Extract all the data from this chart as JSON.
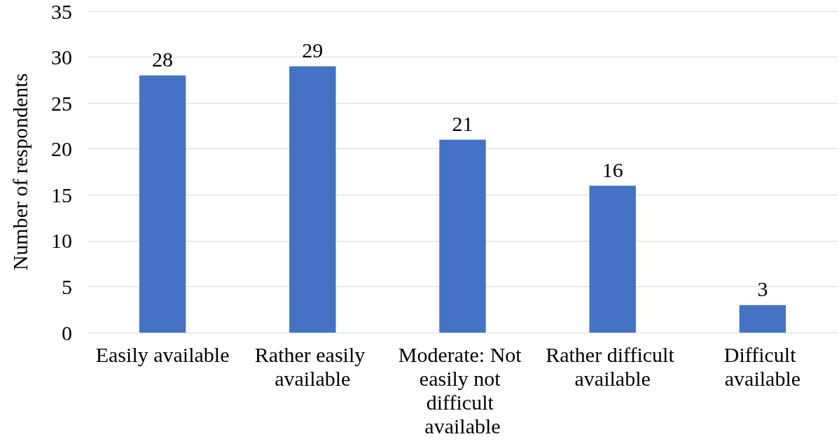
{
  "chart_data": {
    "type": "bar",
    "ylabel": "Number of respondents",
    "categories": [
      "Easily available",
      "Rather easily available",
      "Moderate: Not easily not difficult available",
      "Rather difficult available",
      "Difficult available"
    ],
    "values": [
      28,
      29,
      21,
      16,
      3
    ],
    "color": "#4472c4",
    "ylim": [
      0,
      35
    ],
    "yticks": [
      0,
      5,
      10,
      15,
      20,
      25,
      30,
      35
    ],
    "grid": "y",
    "data_labels": true
  }
}
